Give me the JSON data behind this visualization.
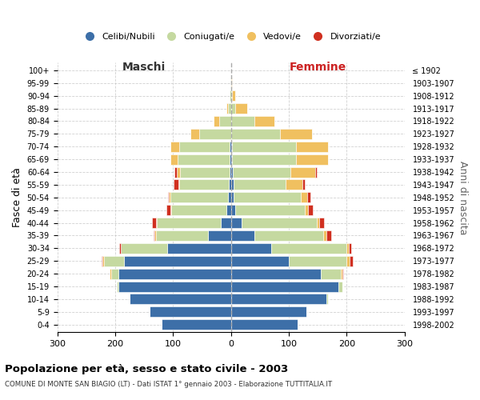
{
  "age_groups": [
    "0-4",
    "5-9",
    "10-14",
    "15-19",
    "20-24",
    "25-29",
    "30-34",
    "35-39",
    "40-44",
    "45-49",
    "50-54",
    "55-59",
    "60-64",
    "65-69",
    "70-74",
    "75-79",
    "80-84",
    "85-89",
    "90-94",
    "95-99",
    "100+"
  ],
  "birth_years": [
    "1998-2002",
    "1993-1997",
    "1988-1992",
    "1983-1987",
    "1978-1982",
    "1973-1977",
    "1968-1972",
    "1963-1967",
    "1958-1962",
    "1953-1957",
    "1948-1952",
    "1943-1947",
    "1938-1942",
    "1933-1937",
    "1928-1932",
    "1923-1927",
    "1918-1922",
    "1913-1917",
    "1908-1912",
    "1903-1907",
    "≤ 1902"
  ],
  "males": {
    "celibi": [
      120,
      140,
      175,
      195,
      195,
      185,
      110,
      40,
      18,
      8,
      5,
      4,
      3,
      2,
      2,
      0,
      0,
      0,
      0,
      0,
      0
    ],
    "coniugati": [
      0,
      0,
      0,
      2,
      12,
      35,
      80,
      90,
      110,
      95,
      100,
      85,
      85,
      90,
      88,
      55,
      20,
      5,
      2,
      1,
      0
    ],
    "vedovi": [
      0,
      0,
      0,
      0,
      2,
      2,
      1,
      2,
      1,
      1,
      2,
      2,
      5,
      12,
      15,
      15,
      10,
      3,
      1,
      0,
      0
    ],
    "divorziati": [
      0,
      0,
      0,
      0,
      0,
      2,
      2,
      2,
      7,
      7,
      2,
      8,
      5,
      0,
      0,
      0,
      0,
      0,
      0,
      0,
      0
    ]
  },
  "females": {
    "nubili": [
      115,
      130,
      165,
      185,
      155,
      100,
      70,
      40,
      18,
      8,
      5,
      4,
      3,
      2,
      2,
      0,
      0,
      0,
      0,
      0,
      0
    ],
    "coniugate": [
      0,
      0,
      2,
      8,
      35,
      100,
      130,
      120,
      130,
      120,
      115,
      90,
      100,
      110,
      110,
      85,
      40,
      8,
      2,
      1,
      0
    ],
    "vedove": [
      0,
      0,
      0,
      0,
      2,
      5,
      3,
      5,
      5,
      5,
      12,
      30,
      42,
      55,
      55,
      55,
      35,
      20,
      5,
      1,
      0
    ],
    "divorziate": [
      0,
      0,
      0,
      0,
      2,
      5,
      5,
      8,
      8,
      8,
      5,
      3,
      3,
      0,
      0,
      0,
      0,
      0,
      0,
      0,
      0
    ]
  },
  "colors": {
    "celibi": "#3d6fa8",
    "coniugati": "#c5d9a0",
    "vedovi": "#f0c060",
    "divorziati": "#d03020"
  },
  "xlim": 300,
  "title": "Popolazione per età, sesso e stato civile - 2003",
  "subtitle": "COMUNE DI MONTE SAN BIAGIO (LT) - Dati ISTAT 1° gennaio 2003 - Elaborazione TUTTITALIA.IT",
  "ylabel_left": "Fasce di età",
  "ylabel_right": "Anni di nascita",
  "label_maschi": "Maschi",
  "label_femmine": "Femmine",
  "legend_labels": [
    "Celibi/Nubili",
    "Coniugati/e",
    "Vedovi/e",
    "Divorziati/e"
  ],
  "background_color": "#ffffff",
  "grid_color": "#cccccc"
}
